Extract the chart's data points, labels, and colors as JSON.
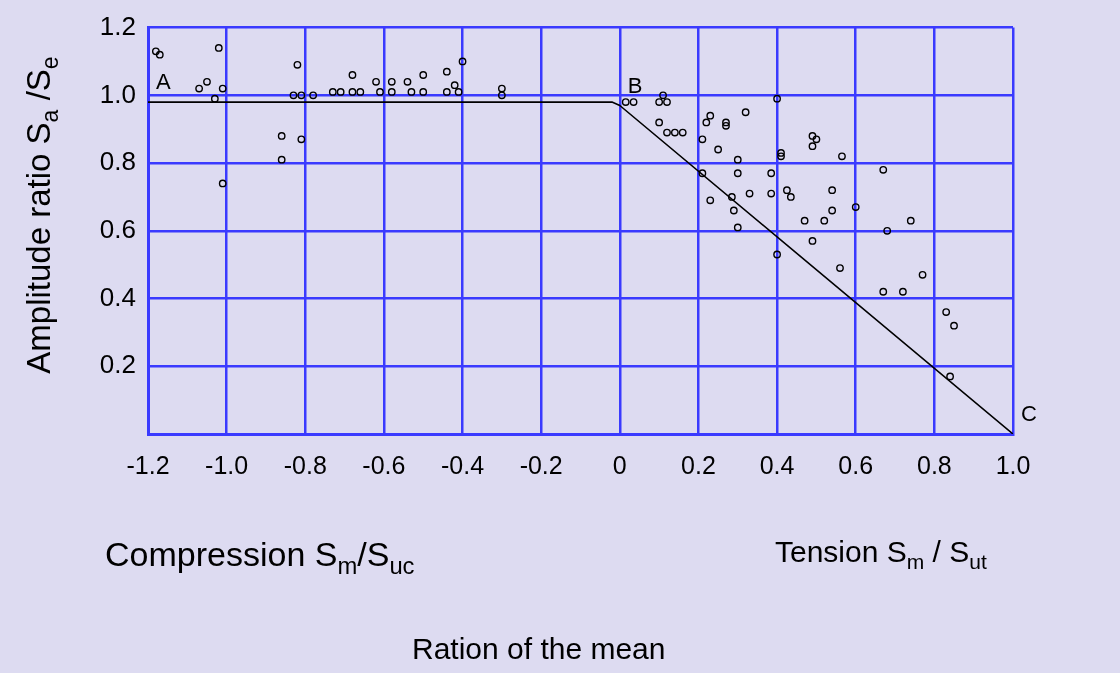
{
  "chart_data": {
    "type": "scatter",
    "ylabel": "Amplitude ratio S$_{a}$ /S$_{e}$",
    "xlim": [
      -1.2,
      1.0
    ],
    "ylim": [
      0,
      1.2
    ],
    "xticks": [
      -1.2,
      {
        "value": -1.0,
        "label": "-1.0"
      },
      -0.8,
      -0.6,
      -0.4,
      -0.2,
      0,
      0.2,
      0.4,
      0.6,
      0.8,
      {
        "value": 1.0,
        "label": "1.0"
      }
    ],
    "yticks": [
      0.2,
      0.4,
      0.6,
      0.8,
      {
        "value": 1.0,
        "label": "1.0"
      },
      1.2
    ],
    "grid": true,
    "series": [
      {
        "type": "scatter",
        "marker": "circle",
        "color": "#000000",
        "x": [
          -1.18,
          -1.17,
          -1.02,
          -1.05,
          -1.07,
          -1.03,
          -1.01,
          -1.01,
          -0.82,
          -0.83,
          -0.81,
          -0.78,
          -0.86,
          -0.81,
          -0.86,
          -0.73,
          -0.71,
          -0.68,
          -0.68,
          -0.66,
          -0.62,
          -0.61,
          -0.58,
          -0.58,
          -0.54,
          -0.53,
          -0.5,
          -0.5,
          -0.44,
          -0.44,
          -0.42,
          -0.41,
          -0.4,
          -0.3,
          -0.3,
          0.015,
          0.035,
          0.11,
          0.1,
          0.12,
          0.1,
          0.12,
          0.14,
          0.16,
          0.23,
          0.22,
          0.27,
          0.27,
          0.32,
          0.21,
          0.25,
          0.3,
          0.4,
          0.41,
          0.41,
          0.21,
          0.3,
          0.385,
          0.23,
          0.285,
          0.33,
          0.385,
          0.425,
          0.435,
          0.29,
          0.3,
          0.4,
          0.49,
          0.5,
          0.49,
          0.565,
          0.67,
          0.54,
          0.54,
          0.6,
          0.47,
          0.52,
          0.74,
          0.68,
          0.49,
          0.56,
          0.77,
          0.67,
          0.72,
          0.83,
          0.85,
          0.84
        ],
        "values": [
          1.13,
          1.12,
          1.14,
          1.04,
          1.02,
          0.99,
          1.02,
          0.74,
          1.09,
          1.0,
          1.0,
          1.0,
          0.88,
          0.87,
          0.81,
          1.01,
          1.01,
          1.06,
          1.01,
          1.01,
          1.04,
          1.01,
          1.04,
          1.01,
          1.04,
          1.01,
          1.06,
          1.01,
          1.07,
          1.01,
          1.03,
          1.01,
          1.1,
          1.02,
          1.0,
          0.98,
          0.98,
          1.0,
          0.98,
          0.98,
          0.92,
          0.89,
          0.89,
          0.89,
          0.94,
          0.92,
          0.92,
          0.91,
          0.95,
          0.87,
          0.84,
          0.81,
          0.99,
          0.83,
          0.82,
          0.77,
          0.77,
          0.77,
          0.69,
          0.7,
          0.71,
          0.71,
          0.72,
          0.7,
          0.66,
          0.61,
          0.53,
          0.88,
          0.87,
          0.85,
          0.82,
          0.78,
          0.72,
          0.66,
          0.67,
          0.63,
          0.63,
          0.63,
          0.6,
          0.57,
          0.49,
          0.47,
          0.42,
          0.42,
          0.36,
          0.32,
          0.17
        ]
      },
      {
        "type": "line",
        "marker": "none",
        "line_style": "solid",
        "color": "#000000",
        "x": [
          -1.2,
          -0.02,
          0,
          1.0
        ],
        "values": [
          0.98,
          0.98,
          0.97,
          0
        ]
      }
    ],
    "annotations": [
      "Compression S$_{m}$/S$_{uc}$",
      "Tension S$_{m}$ / S$_{ut}$",
      "Ration of the mean",
      {
        "text": "A",
        "x": -1.2,
        "y": 0.98
      },
      {
        "text": "B",
        "x": 0,
        "y": 0.97
      },
      {
        "text": "C",
        "x": 1.0,
        "y": 0
      }
    ]
  }
}
